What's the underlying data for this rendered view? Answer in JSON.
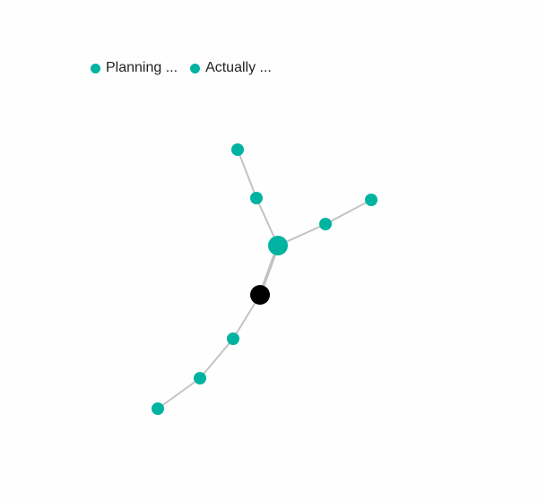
{
  "legend": [
    {
      "label": "Planning ...",
      "color": "#00b3a1"
    },
    {
      "label": "Actually ...",
      "color": "#00b3a1"
    }
  ],
  "colors": {
    "node": "#00b3a1",
    "root_node": "#000000",
    "edge": "#c3c3c3"
  }
}
